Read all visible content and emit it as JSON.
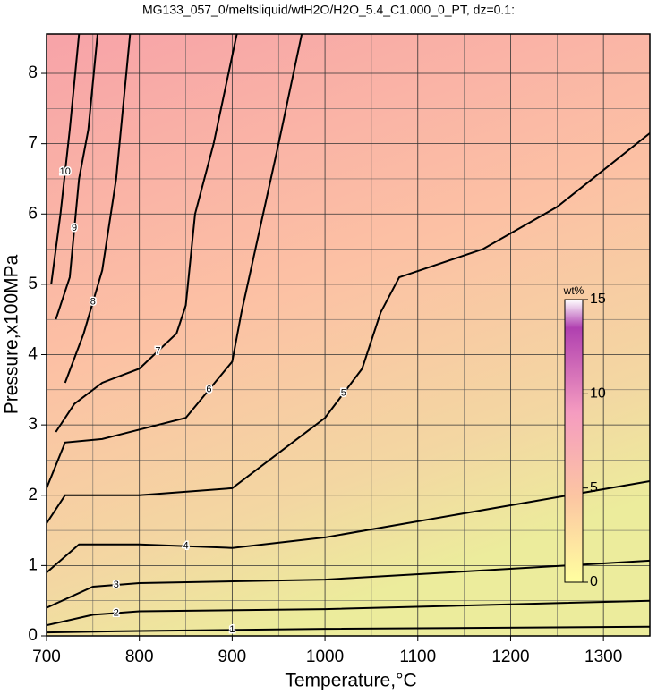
{
  "chart_data": {
    "type": "contour",
    "title": "MG133_057_0/meltsliquid/wtH2O/H2O_5.4_C1.000_0_PT, dz=0.1:",
    "x_label": "Temperature,°C",
    "y_label": "Pressure,x100MPa",
    "xlim": [
      700,
      1350
    ],
    "ylim": [
      0,
      8.56
    ],
    "xticks": [
      700,
      800,
      900,
      1000,
      1100,
      1200,
      1300
    ],
    "yticks": [
      0,
      1,
      2,
      3,
      4,
      5,
      6,
      7,
      8
    ],
    "xgrid": [
      750,
      850,
      950,
      1050,
      1150,
      1250
    ],
    "ygrid": [
      0.5,
      1.5,
      2.5,
      3.5,
      4.5,
      5.5,
      6.5,
      7.5
    ],
    "grid": true,
    "colorbar": {
      "label": "wt%",
      "lim": [
        0,
        15
      ],
      "ticks": [
        0,
        5,
        10,
        15
      ]
    },
    "series": [
      {
        "name": "1",
        "x": [
          700,
          800,
          1000,
          1350
        ],
        "y": [
          0.05,
          0.07,
          0.1,
          0.13
        ]
      },
      {
        "name": "2",
        "x": [
          700,
          750,
          800,
          1000,
          1350
        ],
        "y": [
          0.15,
          0.3,
          0.35,
          0.38,
          0.5
        ]
      },
      {
        "name": "3",
        "x": [
          700,
          750,
          800,
          1000,
          1350
        ],
        "y": [
          0.4,
          0.7,
          0.75,
          0.8,
          1.07
        ]
      },
      {
        "name": "4",
        "x": [
          700,
          735,
          800,
          900,
          1000,
          1350
        ],
        "y": [
          0.9,
          1.3,
          1.3,
          1.25,
          1.4,
          2.2
        ]
      },
      {
        "name": "5",
        "x": [
          700,
          720,
          800,
          900,
          950,
          1000,
          1040,
          1060,
          1080,
          1170,
          1250,
          1350
        ],
        "y": [
          1.6,
          2.0,
          2.0,
          2.1,
          2.6,
          3.1,
          3.8,
          4.6,
          5.1,
          5.5,
          6.1,
          7.15
        ]
      },
      {
        "name": "6",
        "x": [
          700,
          720,
          760,
          850,
          900,
          910,
          930,
          950,
          975
        ],
        "y": [
          2.1,
          2.75,
          2.8,
          3.1,
          3.9,
          4.6,
          5.8,
          7.0,
          8.56
        ]
      },
      {
        "name": "7",
        "x": [
          710,
          730,
          760,
          800,
          840,
          850,
          860,
          880,
          905
        ],
        "y": [
          2.9,
          3.3,
          3.6,
          3.8,
          4.3,
          4.7,
          6.0,
          7.0,
          8.56
        ]
      },
      {
        "name": "8",
        "x": [
          720,
          740,
          760,
          775,
          790
        ],
        "y": [
          3.6,
          4.3,
          5.2,
          6.5,
          8.56
        ]
      },
      {
        "name": "9",
        "x": [
          710,
          725,
          735,
          745,
          755
        ],
        "y": [
          4.5,
          5.1,
          6.5,
          7.2,
          8.56
        ]
      },
      {
        "name": "10",
        "x": [
          705,
          715,
          725,
          735
        ],
        "y": [
          5.0,
          6.0,
          7.2,
          8.56
        ]
      }
    ]
  }
}
